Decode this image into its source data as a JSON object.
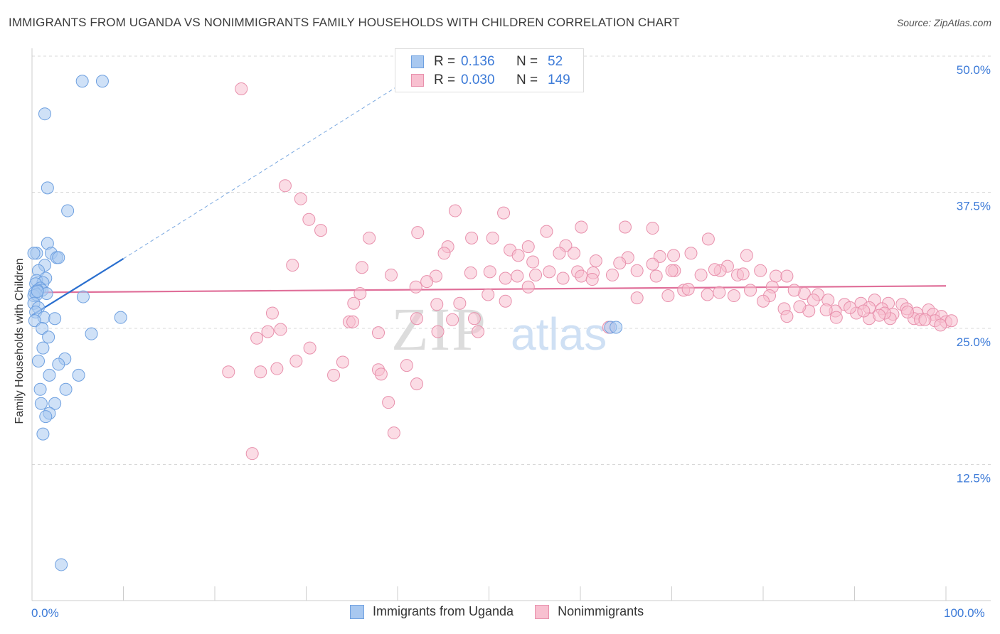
{
  "title": "IMMIGRANTS FROM UGANDA VS NONIMMIGRANTS FAMILY HOUSEHOLDS WITH CHILDREN CORRELATION CHART",
  "source": "Source: ZipAtlas.com",
  "watermark": {
    "zip": "ZIP",
    "atlas": "atlas"
  },
  "legend_box": {
    "rows": [
      {
        "r_label": "R =",
        "r_value": "0.136",
        "n_label": "N =",
        "n_value": "52"
      },
      {
        "r_label": "R =",
        "r_value": "0.030",
        "n_label": "N =",
        "n_value": "149"
      }
    ]
  },
  "bottom_legend": [
    "Immigrants from Uganda",
    "Nonimmigrants"
  ],
  "colors": {
    "blue_fill": "#a8c8f0",
    "blue_edge": "#6ea0e0",
    "blue_line": "#2a6fcf",
    "pink_fill": "#f8c0d0",
    "pink_edge": "#e890ac",
    "pink_line": "#e0709a",
    "grid": "#d8d8d8",
    "axis_text": "#3d7bd8"
  },
  "chart_data": {
    "type": "scatter",
    "title": "IMMIGRANTS FROM UGANDA VS NONIMMIGRANTS FAMILY HOUSEHOLDS WITH CHILDREN CORRELATION CHART",
    "xlabel": "",
    "ylabel": "Family Households with Children",
    "xlim": [
      0,
      100
    ],
    "ylim": [
      0,
      50
    ],
    "x_tick_labels": [
      "0.0%",
      "100.0%"
    ],
    "y_ticks": [
      12.5,
      25.0,
      37.5,
      50.0
    ],
    "y_tick_labels": [
      "12.5%",
      "25.0%",
      "37.5%",
      "50.0%"
    ],
    "series": [
      {
        "name": "Immigrants from Uganda",
        "r": 0.136,
        "n": 52,
        "trend": {
          "x": [
            0,
            10
          ],
          "y": [
            26.2,
            31.4
          ]
        },
        "trend_extension": {
          "x": [
            10,
            40.5
          ],
          "y": [
            31.4,
            47.5
          ]
        },
        "points": [
          [
            5.5,
            47.7
          ],
          [
            7.7,
            47.7
          ],
          [
            1.4,
            44.7
          ],
          [
            1.7,
            37.9
          ],
          [
            3.9,
            35.8
          ],
          [
            1.7,
            32.8
          ],
          [
            2.1,
            31.9
          ],
          [
            0.5,
            31.9
          ],
          [
            0.2,
            31.9
          ],
          [
            2.7,
            31.5
          ],
          [
            2.9,
            31.5
          ],
          [
            1.4,
            30.8
          ],
          [
            0.7,
            30.3
          ],
          [
            1.5,
            29.6
          ],
          [
            0.5,
            29.4
          ],
          [
            1.2,
            29.2
          ],
          [
            0.4,
            29.1
          ],
          [
            0.9,
            28.7
          ],
          [
            1.1,
            28.5
          ],
          [
            0.6,
            28.5
          ],
          [
            0.3,
            28.3
          ],
          [
            1.6,
            28.2
          ],
          [
            0.2,
            28.0
          ],
          [
            0.5,
            28.1
          ],
          [
            5.6,
            27.9
          ],
          [
            0.2,
            27.3
          ],
          [
            0.7,
            26.9
          ],
          [
            0.4,
            26.5
          ],
          [
            1.3,
            26.0
          ],
          [
            2.5,
            25.9
          ],
          [
            0.3,
            25.7
          ],
          [
            9.7,
            26.0
          ],
          [
            1.1,
            25.0
          ],
          [
            6.5,
            24.5
          ],
          [
            1.8,
            24.2
          ],
          [
            1.2,
            23.2
          ],
          [
            3.6,
            22.2
          ],
          [
            0.7,
            22.0
          ],
          [
            2.9,
            21.7
          ],
          [
            1.9,
            20.7
          ],
          [
            5.1,
            20.7
          ],
          [
            0.9,
            19.4
          ],
          [
            3.7,
            19.4
          ],
          [
            1.0,
            18.1
          ],
          [
            2.5,
            18.1
          ],
          [
            1.9,
            17.2
          ],
          [
            1.5,
            16.9
          ],
          [
            1.2,
            15.3
          ],
          [
            63.3,
            25.1
          ],
          [
            63.9,
            25.1
          ],
          [
            3.2,
            3.3
          ],
          [
            0.6,
            28.4
          ]
        ]
      },
      {
        "name": "Nonimmigrants",
        "r": 0.03,
        "n": 149,
        "trend": {
          "x": [
            0,
            100
          ],
          "y": [
            28.3,
            28.9
          ]
        },
        "points": [
          [
            22.9,
            47.0
          ],
          [
            27.7,
            38.1
          ],
          [
            29.4,
            36.9
          ],
          [
            30.3,
            35.0
          ],
          [
            31.6,
            34.0
          ],
          [
            46.3,
            35.8
          ],
          [
            51.6,
            35.6
          ],
          [
            36.9,
            33.3
          ],
          [
            42.2,
            33.8
          ],
          [
            48.1,
            33.3
          ],
          [
            50.4,
            33.3
          ],
          [
            56.3,
            33.9
          ],
          [
            60.1,
            34.3
          ],
          [
            64.9,
            34.3
          ],
          [
            67.9,
            34.2
          ],
          [
            74.0,
            33.2
          ],
          [
            58.4,
            32.6
          ],
          [
            45.5,
            32.5
          ],
          [
            52.3,
            32.2
          ],
          [
            54.3,
            32.5
          ],
          [
            45.1,
            31.9
          ],
          [
            53.2,
            31.7
          ],
          [
            57.7,
            31.9
          ],
          [
            59.3,
            31.9
          ],
          [
            65.2,
            31.5
          ],
          [
            68.7,
            31.6
          ],
          [
            70.2,
            31.7
          ],
          [
            72.1,
            31.9
          ],
          [
            78.2,
            31.7
          ],
          [
            28.5,
            30.8
          ],
          [
            36.1,
            30.6
          ],
          [
            54.8,
            31.1
          ],
          [
            61.7,
            31.2
          ],
          [
            64.3,
            31.0
          ],
          [
            67.9,
            30.9
          ],
          [
            76.1,
            30.7
          ],
          [
            48.0,
            30.1
          ],
          [
            50.1,
            30.2
          ],
          [
            56.6,
            30.2
          ],
          [
            59.7,
            30.2
          ],
          [
            66.2,
            30.3
          ],
          [
            70.3,
            30.3
          ],
          [
            75.3,
            30.3
          ],
          [
            79.7,
            30.3
          ],
          [
            39.3,
            29.9
          ],
          [
            44.2,
            29.8
          ],
          [
            51.8,
            29.6
          ],
          [
            53.1,
            29.8
          ],
          [
            55.1,
            29.9
          ],
          [
            60.1,
            29.8
          ],
          [
            61.4,
            30.1
          ],
          [
            63.5,
            29.9
          ],
          [
            68.3,
            29.8
          ],
          [
            73.2,
            29.9
          ],
          [
            77.2,
            29.9
          ],
          [
            81.4,
            29.8
          ],
          [
            82.6,
            29.8
          ],
          [
            43.2,
            29.3
          ],
          [
            58.1,
            29.6
          ],
          [
            61.3,
            29.5
          ],
          [
            70.0,
            30.3
          ],
          [
            74.7,
            30.4
          ],
          [
            42.0,
            28.8
          ],
          [
            54.3,
            28.8
          ],
          [
            71.3,
            28.5
          ],
          [
            81.0,
            28.8
          ],
          [
            35.9,
            28.2
          ],
          [
            49.9,
            28.1
          ],
          [
            66.2,
            27.8
          ],
          [
            71.8,
            28.6
          ],
          [
            75.2,
            28.3
          ],
          [
            84.5,
            28.2
          ],
          [
            80.7,
            28.0
          ],
          [
            86.0,
            28.1
          ],
          [
            35.2,
            27.3
          ],
          [
            44.3,
            27.2
          ],
          [
            46.8,
            27.3
          ],
          [
            51.8,
            27.5
          ],
          [
            85.5,
            27.6
          ],
          [
            87.1,
            27.6
          ],
          [
            92.2,
            27.6
          ],
          [
            88.9,
            27.2
          ],
          [
            90.7,
            27.3
          ],
          [
            93.7,
            27.3
          ],
          [
            95.2,
            27.2
          ],
          [
            91.6,
            26.9
          ],
          [
            93.0,
            26.8
          ],
          [
            95.7,
            26.8
          ],
          [
            98.1,
            26.7
          ],
          [
            87.9,
            26.6
          ],
          [
            85.0,
            26.6
          ],
          [
            90.2,
            26.4
          ],
          [
            94.2,
            26.3
          ],
          [
            96.8,
            26.4
          ],
          [
            98.6,
            26.3
          ],
          [
            99.5,
            26.1
          ],
          [
            82.3,
            26.8
          ],
          [
            88.0,
            26.0
          ],
          [
            91.6,
            25.9
          ],
          [
            93.9,
            25.9
          ],
          [
            96.5,
            25.9
          ],
          [
            97.2,
            25.8
          ],
          [
            98.8,
            25.7
          ],
          [
            100.0,
            25.6
          ],
          [
            99.4,
            25.3
          ],
          [
            100.6,
            25.7
          ],
          [
            26.3,
            26.4
          ],
          [
            34.7,
            25.6
          ],
          [
            35.1,
            25.6
          ],
          [
            42.1,
            25.9
          ],
          [
            46.0,
            25.8
          ],
          [
            48.4,
            25.9
          ],
          [
            63.1,
            25.1
          ],
          [
            25.8,
            24.7
          ],
          [
            27.2,
            24.9
          ],
          [
            44.4,
            24.7
          ],
          [
            48.8,
            24.7
          ],
          [
            37.9,
            24.6
          ],
          [
            24.6,
            24.1
          ],
          [
            30.4,
            23.2
          ],
          [
            34.0,
            21.9
          ],
          [
            28.9,
            22.0
          ],
          [
            41.0,
            21.6
          ],
          [
            37.9,
            21.2
          ],
          [
            26.8,
            21.3
          ],
          [
            25.0,
            21.0
          ],
          [
            21.5,
            21.0
          ],
          [
            33.0,
            20.7
          ],
          [
            38.2,
            20.8
          ],
          [
            42.1,
            19.9
          ],
          [
            39.0,
            18.2
          ],
          [
            39.6,
            15.4
          ],
          [
            24.1,
            13.5
          ],
          [
            82.6,
            26.1
          ],
          [
            91.0,
            26.6
          ],
          [
            93.3,
            26.4
          ],
          [
            95.8,
            26.5
          ],
          [
            86.9,
            26.7
          ],
          [
            89.5,
            26.9
          ],
          [
            84.0,
            27.0
          ],
          [
            92.7,
            26.2
          ],
          [
            97.7,
            25.8
          ],
          [
            80.0,
            27.5
          ],
          [
            78.6,
            28.5
          ],
          [
            76.8,
            28.0
          ],
          [
            73.9,
            28.1
          ],
          [
            69.6,
            28.0
          ],
          [
            83.4,
            28.5
          ],
          [
            77.8,
            30.0
          ]
        ]
      }
    ]
  }
}
